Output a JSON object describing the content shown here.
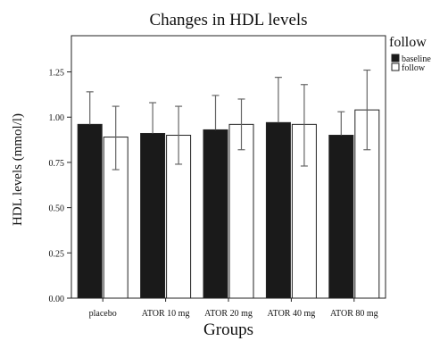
{
  "chart_data": {
    "type": "bar",
    "title": "Changes in HDL levels",
    "xlabel": "Groups",
    "ylabel": "HDL levels (mmol/l)",
    "categories": [
      "placebo",
      "ATOR 10 mg",
      "ATOR 20 mg",
      "ATOR 40 mg",
      "ATOR 80 mg"
    ],
    "ylim": [
      0,
      1.45
    ],
    "yticks": [
      "0.00",
      "0.25",
      "0.50",
      "0.75",
      "1.00",
      "1.25"
    ],
    "legend_title": "follow",
    "legend_position": "right",
    "grid": false,
    "series": [
      {
        "name": "baseline",
        "color": "#1a1a1a",
        "values": [
          0.96,
          0.91,
          0.93,
          0.97,
          0.9
        ],
        "error_upper": [
          1.14,
          1.08,
          1.12,
          1.22,
          1.03
        ]
      },
      {
        "name": "follow",
        "color": "#ffffff",
        "values": [
          0.89,
          0.9,
          0.96,
          0.96,
          1.04
        ],
        "error_upper": [
          1.06,
          1.06,
          1.1,
          1.18,
          1.26
        ],
        "error_lower": [
          0.71,
          0.74,
          0.82,
          0.73,
          0.82
        ]
      }
    ]
  }
}
